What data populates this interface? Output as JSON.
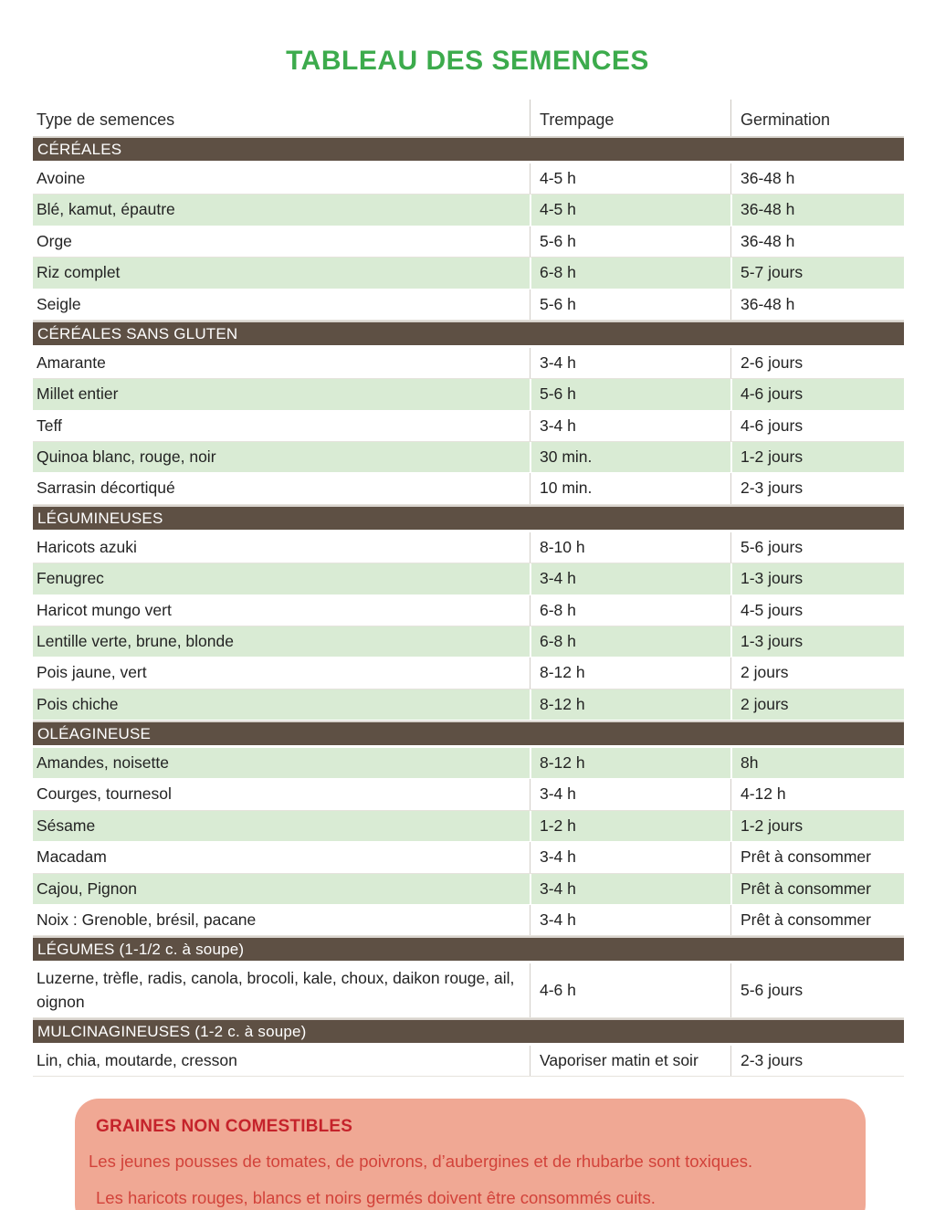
{
  "page": {
    "title": "TABLEAU DES SEMENCES"
  },
  "colors": {
    "title_green": "#3cab4c",
    "section_header_brown": "#5e5044",
    "shaded_row_green": "#d9ebd4",
    "notice_background": "#f0a894",
    "notice_title_red": "#c5232b",
    "notice_text_red": "#d2423a"
  },
  "table": {
    "columns": [
      "Type de semences",
      "Trempage",
      "Germination"
    ],
    "sections": [
      {
        "header": "CÉRÉALES",
        "rows": [
          {
            "name": "Avoine",
            "trempage": "4-5 h",
            "germination": "36-48 h",
            "shaded": false
          },
          {
            "name": "Blé, kamut, épautre",
            "trempage": "4-5 h",
            "germination": "36-48 h",
            "shaded": true
          },
          {
            "name": "Orge",
            "trempage": "5-6 h",
            "germination": "36-48 h",
            "shaded": false
          },
          {
            "name": "Riz complet",
            "trempage": "6-8 h",
            "germination": "5-7 jours",
            "shaded": true
          },
          {
            "name": "Seigle",
            "trempage": "5-6 h",
            "germination": "36-48 h",
            "shaded": false
          }
        ]
      },
      {
        "header": "CÉRÉALES SANS GLUTEN",
        "rows": [
          {
            "name": "Amarante",
            "trempage": "3-4 h",
            "germination": "2-6 jours",
            "shaded": false
          },
          {
            "name": "Millet entier",
            "trempage": "5-6 h",
            "germination": "4-6 jours",
            "shaded": true
          },
          {
            "name": "Teff",
            "trempage": "3-4 h",
            "germination": "4-6 jours",
            "shaded": false
          },
          {
            "name": "Quinoa blanc, rouge, noir",
            "trempage": "30 min.",
            "germination": "1-2 jours",
            "shaded": true
          },
          {
            "name": "Sarrasin décortiqué",
            "trempage": "10 min.",
            "germination": "2-3 jours",
            "shaded": false
          }
        ]
      },
      {
        "header": "LÉGUMINEUSES",
        "rows": [
          {
            "name": "Haricots azuki",
            "trempage": "8-10 h",
            "germination": "5-6 jours",
            "shaded": false
          },
          {
            "name": "Fenugrec",
            "trempage": "3-4 h",
            "germination": "1-3 jours",
            "shaded": true
          },
          {
            "name": "Haricot mungo vert",
            "trempage": "6-8 h",
            "germination": "4-5 jours",
            "shaded": false
          },
          {
            "name": "Lentille verte, brune, blonde",
            "trempage": "6-8 h",
            "germination": "1-3 jours",
            "shaded": true
          },
          {
            "name": "Pois jaune, vert",
            "trempage": "8-12 h",
            "germination": "2 jours",
            "shaded": false
          },
          {
            "name": "Pois chiche",
            "trempage": "8-12 h",
            "germination": "2 jours",
            "shaded": true
          }
        ]
      },
      {
        "header": "OLÉAGINEUSE",
        "rows": [
          {
            "name": "Amandes, noisette",
            "trempage": "8-12 h",
            "germination": "8h",
            "shaded": true
          },
          {
            "name": "Courges, tournesol",
            "trempage": "3-4 h",
            "germination": "4-12 h",
            "shaded": false
          },
          {
            "name": "Sésame",
            "trempage": "1-2 h",
            "germination": "1-2 jours",
            "shaded": true
          },
          {
            "name": "Macadam",
            "trempage": "3-4 h",
            "germination": "Prêt à consommer",
            "shaded": false
          },
          {
            "name": "Cajou, Pignon",
            "trempage": "3-4 h",
            "germination": "Prêt à consommer",
            "shaded": true
          },
          {
            "name": "Noix : Grenoble, brésil, pacane",
            "trempage": "3-4 h",
            "germination": "Prêt à consommer",
            "shaded": false
          }
        ]
      },
      {
        "header": "LÉGUMES (1-1/2 c. à soupe)",
        "rows": [
          {
            "name": "Luzerne, trèfle, radis, canola, brocoli, kale, choux, daikon rouge, ail, oignon",
            "trempage": "4-6 h",
            "germination": "5-6 jours",
            "shaded": false
          }
        ]
      },
      {
        "header": "MULCINAGINEUSES (1-2 c. à soupe)",
        "rows": [
          {
            "name": "Lin, chia, moutarde, cresson",
            "trempage": "Vaporiser matin et soir",
            "germination": "2-3 jours",
            "shaded": false
          }
        ]
      }
    ]
  },
  "notice": {
    "title": "GRAINES NON COMESTIBLES",
    "lines": [
      "Les jeunes pousses de tomates, de poivrons, d’aubergines et de rhubarbe sont toxiques.",
      "Les haricots rouges, blancs et noirs germés doivent être consommés cuits."
    ]
  }
}
